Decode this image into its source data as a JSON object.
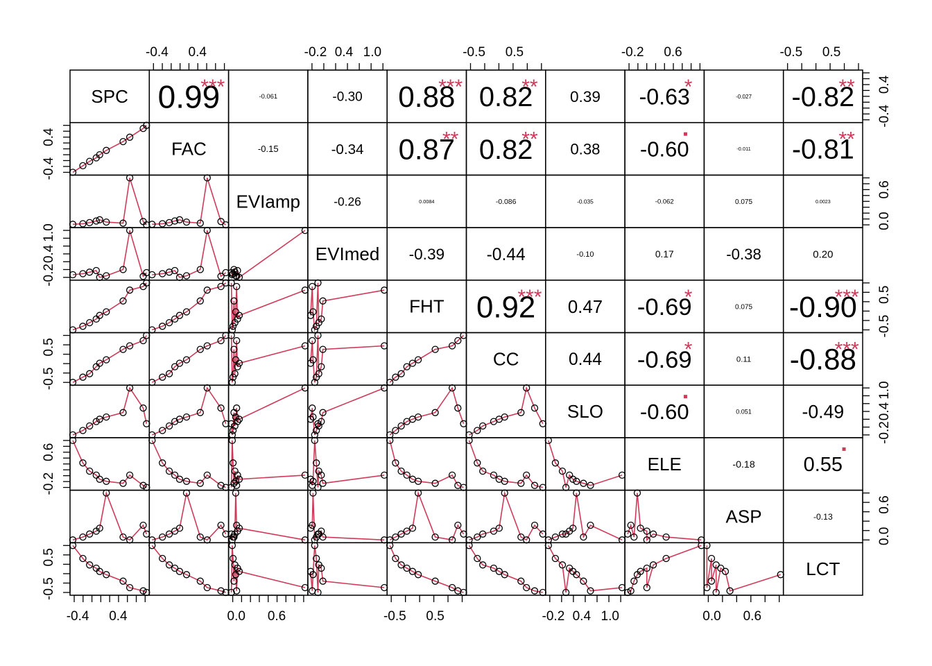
{
  "chart_data": {
    "type": "scatter",
    "title": "",
    "variables": [
      "SPC",
      "FAC",
      "EVIamp",
      "EVImed",
      "FHT",
      "CC",
      "SLO",
      "ELE",
      "ASP",
      "LCT"
    ],
    "axis_ticks": [
      {
        "labels": [
          "-0.4",
          "0.4"
        ],
        "minor_count": 9
      },
      {
        "labels": [
          "-0.4",
          "0.4"
        ],
        "minor_count": 9
      },
      {
        "labels": [
          "0.0",
          "0.6"
        ],
        "minor_count": 9
      },
      {
        "labels": [
          "-0.2",
          "0.4",
          "1.0"
        ],
        "minor_count": 7
      },
      {
        "labels": [
          "-0.5",
          "0.5"
        ],
        "minor_count": 6
      },
      {
        "labels": [
          "-0.5",
          "0.5"
        ],
        "minor_count": 6
      },
      {
        "labels": [
          "-0.2",
          "0.4",
          "1.0"
        ],
        "minor_count": 7
      },
      {
        "labels": [
          "-0.2",
          "0.6"
        ],
        "minor_count": 9
      },
      {
        "labels": [
          "0.0",
          "0.6"
        ],
        "minor_count": 6
      },
      {
        "labels": [
          "-0.5",
          "0.5"
        ],
        "minor_count": 6
      }
    ],
    "top_axis_panels": [
      1,
      3,
      5,
      7,
      9
    ],
    "bottom_axis_panels": [
      0,
      2,
      4,
      6,
      8
    ],
    "left_axis_panels": [
      1,
      3,
      5,
      7,
      9
    ],
    "right_axis_panels": [
      0,
      2,
      4,
      6,
      8
    ],
    "correlations": [
      {
        "row": 0,
        "col": 1,
        "label": "0.99",
        "stars": "***"
      },
      {
        "row": 0,
        "col": 2,
        "label": "-0.061",
        "stars": ""
      },
      {
        "row": 0,
        "col": 3,
        "label": "-0.30",
        "stars": ""
      },
      {
        "row": 0,
        "col": 4,
        "label": "0.88",
        "stars": "***"
      },
      {
        "row": 0,
        "col": 5,
        "label": "0.82",
        "stars": "**"
      },
      {
        "row": 0,
        "col": 6,
        "label": "0.39",
        "stars": ""
      },
      {
        "row": 0,
        "col": 7,
        "label": "-0.63",
        "stars": "*"
      },
      {
        "row": 0,
        "col": 8,
        "label": "-0.027",
        "stars": ""
      },
      {
        "row": 0,
        "col": 9,
        "label": "-0.82",
        "stars": "**"
      },
      {
        "row": 1,
        "col": 2,
        "label": "-0.15",
        "stars": ""
      },
      {
        "row": 1,
        "col": 3,
        "label": "-0.34",
        "stars": ""
      },
      {
        "row": 1,
        "col": 4,
        "label": "0.87",
        "stars": "**"
      },
      {
        "row": 1,
        "col": 5,
        "label": "0.82",
        "stars": "**"
      },
      {
        "row": 1,
        "col": 6,
        "label": "0.38",
        "stars": ""
      },
      {
        "row": 1,
        "col": 7,
        "label": "-0.60",
        "stars": "."
      },
      {
        "row": 1,
        "col": 8,
        "label": "-0.011",
        "stars": ""
      },
      {
        "row": 1,
        "col": 9,
        "label": "-0.81",
        "stars": "**"
      },
      {
        "row": 2,
        "col": 3,
        "label": "-0.26",
        "stars": ""
      },
      {
        "row": 2,
        "col": 4,
        "label": "0.0084",
        "stars": ""
      },
      {
        "row": 2,
        "col": 5,
        "label": "-0.086",
        "stars": ""
      },
      {
        "row": 2,
        "col": 6,
        "label": "-0.035",
        "stars": ""
      },
      {
        "row": 2,
        "col": 7,
        "label": "-0.062",
        "stars": ""
      },
      {
        "row": 2,
        "col": 8,
        "label": "0.075",
        "stars": ""
      },
      {
        "row": 2,
        "col": 9,
        "label": "0.0023",
        "stars": ""
      },
      {
        "row": 3,
        "col": 4,
        "label": "-0.39",
        "stars": ""
      },
      {
        "row": 3,
        "col": 5,
        "label": "-0.44",
        "stars": ""
      },
      {
        "row": 3,
        "col": 6,
        "label": "-0.10",
        "stars": ""
      },
      {
        "row": 3,
        "col": 7,
        "label": "0.17",
        "stars": ""
      },
      {
        "row": 3,
        "col": 8,
        "label": "-0.38",
        "stars": ""
      },
      {
        "row": 3,
        "col": 9,
        "label": "0.20",
        "stars": ""
      },
      {
        "row": 4,
        "col": 5,
        "label": "0.92",
        "stars": "***"
      },
      {
        "row": 4,
        "col": 6,
        "label": "0.47",
        "stars": ""
      },
      {
        "row": 4,
        "col": 7,
        "label": "-0.69",
        "stars": "*"
      },
      {
        "row": 4,
        "col": 8,
        "label": "0.075",
        "stars": ""
      },
      {
        "row": 4,
        "col": 9,
        "label": "-0.90",
        "stars": "***"
      },
      {
        "row": 5,
        "col": 6,
        "label": "0.44",
        "stars": ""
      },
      {
        "row": 5,
        "col": 7,
        "label": "-0.69",
        "stars": "*"
      },
      {
        "row": 5,
        "col": 8,
        "label": "0.11",
        "stars": ""
      },
      {
        "row": 5,
        "col": 9,
        "label": "-0.88",
        "stars": "***"
      },
      {
        "row": 6,
        "col": 7,
        "label": "-0.60",
        "stars": "."
      },
      {
        "row": 6,
        "col": 8,
        "label": "0.051",
        "stars": ""
      },
      {
        "row": 6,
        "col": 9,
        "label": "-0.49",
        "stars": ""
      },
      {
        "row": 7,
        "col": 8,
        "label": "-0.18",
        "stars": ""
      },
      {
        "row": 7,
        "col": 9,
        "label": "0.55",
        "stars": "."
      },
      {
        "row": 8,
        "col": 9,
        "label": "-0.13",
        "stars": ""
      }
    ],
    "observations": {
      "SPC": [
        -0.45,
        -0.3,
        -0.2,
        -0.1,
        -0.05,
        0.05,
        0.3,
        0.4,
        0.6,
        0.65
      ],
      "FAC": [
        -0.45,
        -0.3,
        -0.2,
        -0.12,
        -0.05,
        0.05,
        0.25,
        0.35,
        0.55,
        0.62
      ],
      "EVIamp": [
        0.02,
        0.03,
        0.05,
        0.08,
        0.1,
        0.06,
        0.04,
        0.85,
        0.07,
        0.01
      ],
      "EVImed": [
        0.1,
        0.12,
        0.15,
        0.18,
        0.05,
        0.08,
        0.2,
        0.95,
        0.07,
        0.14
      ],
      "FHT": [
        -0.6,
        -0.5,
        -0.4,
        -0.3,
        -0.2,
        -0.1,
        0.2,
        0.5,
        0.6,
        0.7
      ],
      "CC": [
        -0.55,
        -0.4,
        -0.3,
        -0.1,
        0.0,
        0.1,
        0.4,
        0.5,
        0.65,
        0.8
      ],
      "SLO": [
        -0.1,
        0.0,
        0.1,
        0.2,
        0.25,
        0.3,
        0.4,
        0.95,
        0.5,
        0.15
      ],
      "ELE": [
        0.95,
        0.4,
        0.2,
        0.1,
        0.0,
        -0.05,
        -0.1,
        0.1,
        -0.15,
        -0.2
      ],
      "ASP": [
        0.05,
        0.1,
        0.15,
        0.2,
        0.25,
        0.85,
        0.1,
        0.05,
        0.3,
        0.15
      ],
      "LCT": [
        0.9,
        0.5,
        0.3,
        0.2,
        0.1,
        0.0,
        -0.2,
        -0.4,
        -0.5,
        -0.55
      ]
    }
  }
}
